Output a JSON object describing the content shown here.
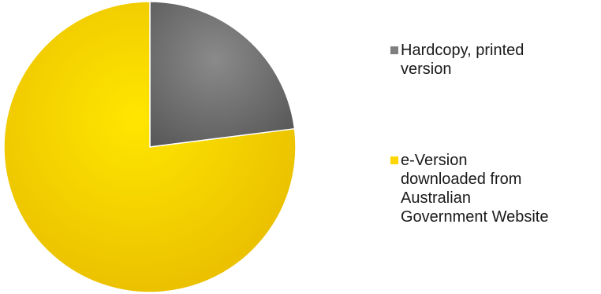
{
  "chart_data": {
    "type": "pie",
    "categories": [
      "Hardcopy, printed version",
      "e-Version downloaded from Australian Government Website"
    ],
    "values": [
      23,
      77
    ],
    "legend_placement": "right",
    "colors": [
      "#7f7f7f",
      "#ffd700"
    ]
  },
  "legend": {
    "items": [
      {
        "lines": [
          "Hardcopy, printed",
          "version"
        ],
        "color": "#7f7f7f"
      },
      {
        "lines": [
          "e-Version",
          "downloaded from",
          "Australian",
          "Government Website"
        ],
        "color": "#ffd700"
      }
    ]
  }
}
